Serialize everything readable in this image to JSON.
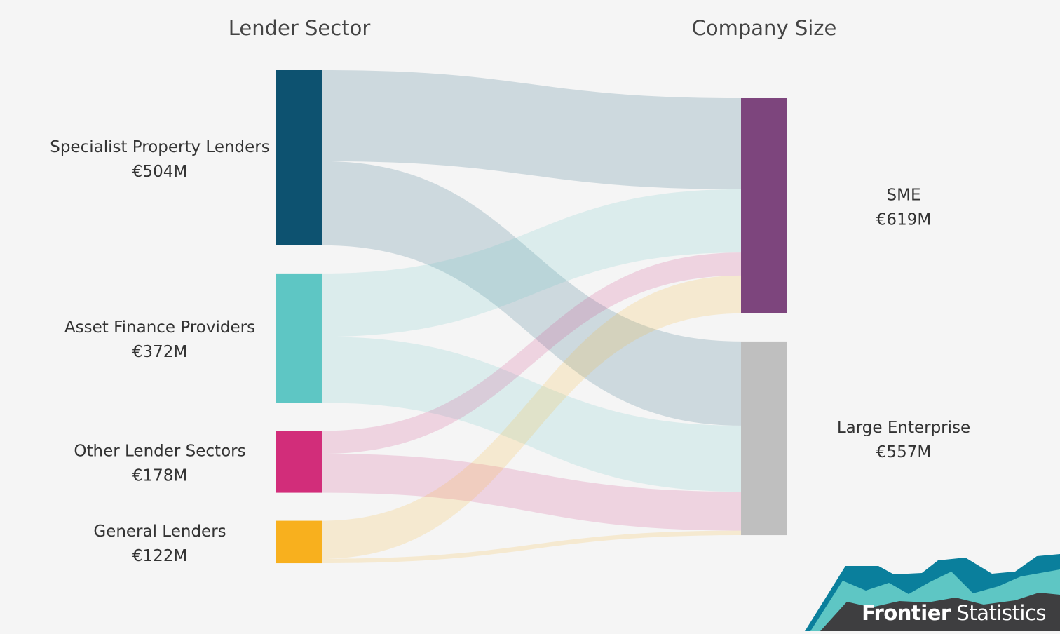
{
  "chart_data": {
    "type": "sankey",
    "columns": {
      "source_title": "Lender Sector",
      "target_title": "Company Size"
    },
    "sources": [
      {
        "id": "spl",
        "name": "Specialist Property Lenders",
        "label": "€504M",
        "value": 504,
        "color": "#0d5270"
      },
      {
        "id": "afp",
        "name": "Asset Finance Providers",
        "label": "€372M",
        "value": 372,
        "color": "#5ec6c4"
      },
      {
        "id": "ols",
        "name": "Other Lender Sectors",
        "label": "€178M",
        "value": 178,
        "color": "#d22d7a"
      },
      {
        "id": "gl",
        "name": "General Lenders",
        "label": "€122M",
        "value": 122,
        "color": "#f8b01e"
      }
    ],
    "targets": [
      {
        "id": "sme",
        "name": "SME",
        "label": "€619M",
        "value": 619,
        "color": "#7d457d"
      },
      {
        "id": "le",
        "name": "Large Enterprise",
        "label": "€557M",
        "value": 557,
        "color": "#bfbfbf"
      }
    ],
    "flows": [
      {
        "source": "spl",
        "target": "sme",
        "value": 262
      },
      {
        "source": "spl",
        "target": "le",
        "value": 242
      },
      {
        "source": "afp",
        "target": "sme",
        "value": 182
      },
      {
        "source": "afp",
        "target": "le",
        "value": 190
      },
      {
        "source": "ols",
        "target": "sme",
        "value": 66
      },
      {
        "source": "ols",
        "target": "le",
        "value": 112
      },
      {
        "source": "gl",
        "target": "sme",
        "value": 109
      },
      {
        "source": "gl",
        "target": "le",
        "value": 13
      }
    ]
  },
  "brand": {
    "strong": "Frontier",
    "light": "Statistics"
  }
}
